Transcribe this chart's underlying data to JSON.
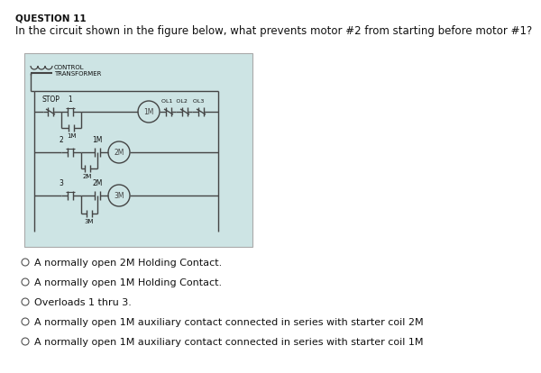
{
  "question_number": "QUESTION 11",
  "question_text": "In the circuit shown in the figure below, what prevents motor #2 from starting before motor #1?",
  "options": [
    "A normally open 2M Holding Contact.",
    "A normally open 1M Holding Contact.",
    "Overloads 1 thru 3.",
    "A normally open 1M auxiliary contact connected in series with starter coil 2M",
    "A normally open 1M auxiliary contact connected in series with starter coil 1M"
  ],
  "selected_option": -1,
  "bg_color": "#ffffff",
  "diagram_bg": "#cde4e4",
  "diagram_border": "#aaaaaa",
  "text_color": "#111111",
  "line_color": "#444444",
  "q_fontsize": 8.5,
  "opt_fontsize": 8.0,
  "qnum_fontsize": 7.5
}
